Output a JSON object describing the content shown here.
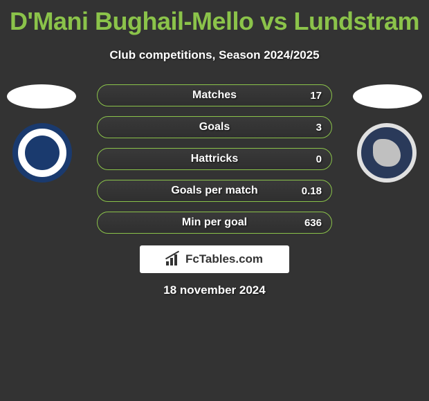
{
  "title": "D'Mani Bughail-Mello vs Lundstram",
  "subtitle": "Club competitions, Season 2024/2025",
  "date": "18 november 2024",
  "brand": "FcTables.com",
  "colors": {
    "accent": "#8bc34a",
    "background": "#333333",
    "text": "#ffffff",
    "badge_left_primary": "#1a3a6e",
    "badge_left_bg": "#ffffff",
    "badge_right_primary": "#2a3a5a",
    "badge_right_border": "#e0e0e0"
  },
  "stats": [
    {
      "label": "Matches",
      "value": "17"
    },
    {
      "label": "Goals",
      "value": "3"
    },
    {
      "label": "Hattricks",
      "value": "0"
    },
    {
      "label": "Goals per match",
      "value": "0.18"
    },
    {
      "label": "Min per goal",
      "value": "636"
    }
  ]
}
